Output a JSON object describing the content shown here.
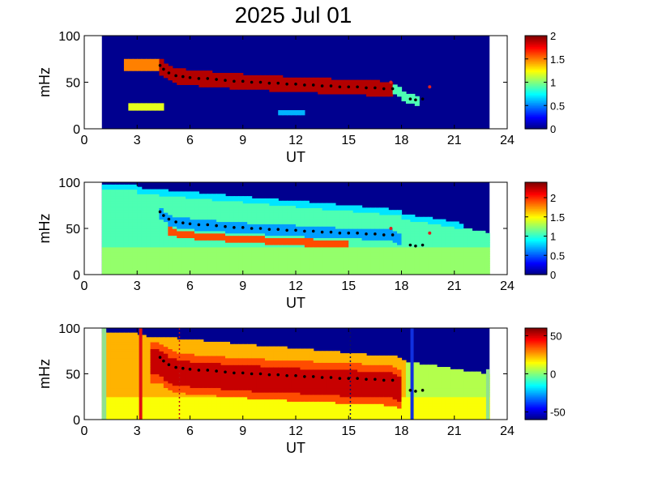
{
  "title": "2025 Jul 01",
  "colors": {
    "background": "#00008f",
    "ridge_marker": "#000000",
    "outlier_marker": "#e02020",
    "line_red": "#e01010",
    "line_blue": "#1030e0",
    "edge_green": "#90e090"
  },
  "chart_data": [
    {
      "type": "heatmap",
      "xlabel": "UT",
      "ylabel": "mHz",
      "xlim": [
        0,
        24
      ],
      "ylim": [
        0,
        100
      ],
      "xticks": [
        "0",
        "3",
        "6",
        "9",
        "12",
        "15",
        "18",
        "21",
        "24"
      ],
      "yticks": [
        "0",
        "50",
        "100"
      ],
      "data_range_ut": [
        1,
        23
      ],
      "colorbar": {
        "min": 0,
        "max": 2,
        "ticks": [
          "0",
          "0.5",
          "1",
          "1.5",
          "2"
        ],
        "colormap": "jet"
      },
      "ridge_points": [
        [
          4.3,
          68
        ],
        [
          4.5,
          64
        ],
        [
          4.8,
          60
        ],
        [
          5.2,
          57
        ],
        [
          5.6,
          56
        ],
        [
          6,
          55
        ],
        [
          6.5,
          54
        ],
        [
          7,
          54
        ],
        [
          7.5,
          53
        ],
        [
          8,
          52
        ],
        [
          8.5,
          51
        ],
        [
          9,
          51
        ],
        [
          9.5,
          50
        ],
        [
          10,
          50
        ],
        [
          10.5,
          49
        ],
        [
          11,
          49
        ],
        [
          11.5,
          48
        ],
        [
          12,
          48
        ],
        [
          12.5,
          47
        ],
        [
          13,
          47
        ],
        [
          13.5,
          46
        ],
        [
          14,
          46
        ],
        [
          14.5,
          45
        ],
        [
          15,
          45
        ],
        [
          15.5,
          45
        ],
        [
          16,
          44
        ],
        [
          16.5,
          44
        ],
        [
          17,
          43
        ],
        [
          17.5,
          43
        ],
        [
          18.5,
          32
        ],
        [
          18.8,
          31
        ],
        [
          19.2,
          32
        ]
      ],
      "outlier_points": [
        [
          17.4,
          50
        ],
        [
          19.6,
          45
        ]
      ]
    },
    {
      "type": "heatmap",
      "xlabel": "UT",
      "ylabel": "mHz",
      "xlim": [
        0,
        24
      ],
      "ylim": [
        0,
        100
      ],
      "xticks": [
        "0",
        "3",
        "6",
        "9",
        "12",
        "15",
        "18",
        "21",
        "24"
      ],
      "yticks": [
        "0",
        "50",
        "100"
      ],
      "data_range_ut": [
        1,
        23
      ],
      "colorbar": {
        "min": 0,
        "max": 2.4,
        "ticks": [
          "0",
          "0.5",
          "1",
          "1.5",
          "2"
        ],
        "colormap": "jet"
      },
      "ridge_points": [
        [
          4.3,
          68
        ],
        [
          4.5,
          64
        ],
        [
          4.8,
          60
        ],
        [
          5.2,
          57
        ],
        [
          5.6,
          56
        ],
        [
          6,
          55
        ],
        [
          6.5,
          54
        ],
        [
          7,
          54
        ],
        [
          7.5,
          53
        ],
        [
          8,
          52
        ],
        [
          8.5,
          51
        ],
        [
          9,
          51
        ],
        [
          9.5,
          50
        ],
        [
          10,
          50
        ],
        [
          10.5,
          49
        ],
        [
          11,
          49
        ],
        [
          11.5,
          48
        ],
        [
          12,
          48
        ],
        [
          12.5,
          47
        ],
        [
          13,
          47
        ],
        [
          13.5,
          46
        ],
        [
          14,
          46
        ],
        [
          14.5,
          45
        ],
        [
          15,
          45
        ],
        [
          15.5,
          45
        ],
        [
          16,
          44
        ],
        [
          16.5,
          44
        ],
        [
          17,
          43
        ],
        [
          17.5,
          43
        ],
        [
          18.5,
          32
        ],
        [
          18.8,
          31
        ],
        [
          19.2,
          32
        ]
      ],
      "outlier_points": [
        [
          17.4,
          50
        ],
        [
          19.6,
          45
        ]
      ]
    },
    {
      "type": "heatmap",
      "xlabel": "UT",
      "ylabel": "mHz",
      "xlim": [
        0,
        24
      ],
      "ylim": [
        0,
        100
      ],
      "xticks": [
        "0",
        "3",
        "6",
        "9",
        "12",
        "15",
        "18",
        "21",
        "24"
      ],
      "yticks": [
        "0",
        "50",
        "100"
      ],
      "data_range_ut": [
        1,
        23
      ],
      "colorbar": {
        "min": -60,
        "max": 60,
        "ticks": [
          "-50",
          "0",
          "50"
        ],
        "colormap": "jet"
      },
      "ridge_points": [
        [
          4.3,
          68
        ],
        [
          4.5,
          64
        ],
        [
          4.8,
          60
        ],
        [
          5.2,
          57
        ],
        [
          5.6,
          56
        ],
        [
          6,
          55
        ],
        [
          6.5,
          54
        ],
        [
          7,
          54
        ],
        [
          7.5,
          53
        ],
        [
          8,
          52
        ],
        [
          8.5,
          51
        ],
        [
          9,
          51
        ],
        [
          9.5,
          50
        ],
        [
          10,
          50
        ],
        [
          10.5,
          49
        ],
        [
          11,
          49
        ],
        [
          11.5,
          48
        ],
        [
          12,
          48
        ],
        [
          12.5,
          47
        ],
        [
          13,
          47
        ],
        [
          13.5,
          46
        ],
        [
          14,
          46
        ],
        [
          14.5,
          45
        ],
        [
          15,
          45
        ],
        [
          15.5,
          45
        ],
        [
          16,
          44
        ],
        [
          16.5,
          44
        ],
        [
          17,
          43
        ],
        [
          17.5,
          43
        ],
        [
          18.5,
          32
        ],
        [
          18.8,
          31
        ],
        [
          19.2,
          32
        ]
      ],
      "outlier_points": [],
      "vertical_lines": [
        {
          "ut": 3.2,
          "color": "#e01010",
          "style": "solid"
        },
        {
          "ut": 5.4,
          "color": "#c01010",
          "style": "dotted"
        },
        {
          "ut": 15.1,
          "color": "#101060",
          "style": "dotted"
        },
        {
          "ut": 18.6,
          "color": "#1030e0",
          "style": "solid"
        }
      ]
    }
  ]
}
